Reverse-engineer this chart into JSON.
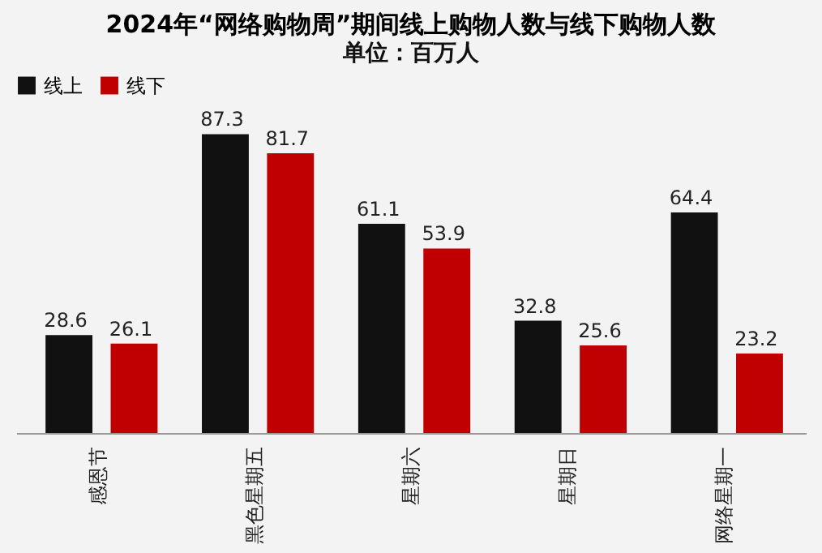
{
  "chart_data": {
    "type": "bar",
    "title": "2024年“网络购物周”期间线上购物人数与线下购物人数",
    "subtitle": "单位：百万人",
    "categories": [
      "感恩节",
      "黑色星期五",
      "星期六",
      "星期日",
      "网络星期一"
    ],
    "series": [
      {
        "name": "线上",
        "color": "#111111",
        "values": [
          28.6,
          87.3,
          61.1,
          32.8,
          64.4
        ]
      },
      {
        "name": "线下",
        "color": "#c00000",
        "values": [
          26.1,
          81.7,
          53.9,
          25.6,
          23.2
        ]
      }
    ],
    "data_labels": true,
    "legend": "top",
    "grid": false
  }
}
